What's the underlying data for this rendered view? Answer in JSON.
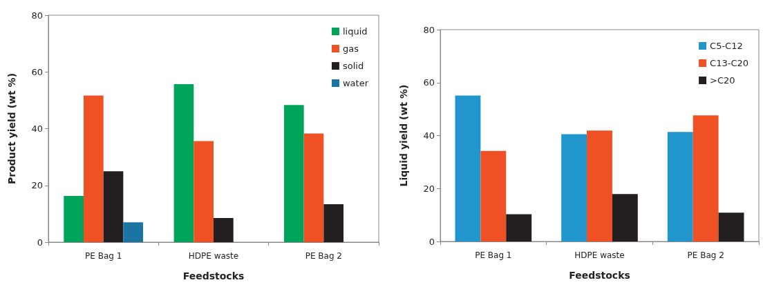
{
  "chart_data": [
    {
      "type": "bar",
      "xlabel": "Feedstocks",
      "ylabel": "Product yield (wt %)",
      "categories": [
        "PE Bag 1",
        "HDPE waste",
        "PE Bag 2"
      ],
      "ylim": [
        0,
        80
      ],
      "yticks": [
        0,
        20,
        40,
        60,
        80
      ],
      "grid": false,
      "legend": "top right",
      "series": [
        {
          "name": "liquid",
          "color": "#00a35a",
          "values": [
            16.3,
            55.7,
            48.3
          ]
        },
        {
          "name": "gas",
          "color": "#ef5125",
          "values": [
            51.7,
            35.6,
            38.3
          ]
        },
        {
          "name": "solid",
          "color": "#231f20",
          "values": [
            25.0,
            8.5,
            13.4
          ]
        },
        {
          "name": "water",
          "color": "#1b75a3",
          "values": [
            7.0,
            null,
            null
          ]
        }
      ]
    },
    {
      "type": "bar",
      "xlabel": "Feedstocks",
      "ylabel": "Liquid yield (wt %)",
      "categories": [
        "PE Bag 1",
        "HDPE waste",
        "PE Bag 2"
      ],
      "ylim": [
        0,
        80
      ],
      "yticks": [
        0,
        20,
        40,
        60,
        80
      ],
      "grid": false,
      "legend": "top right",
      "series": [
        {
          "name": "C5-C12",
          "color": "#2196cc",
          "values": [
            55.1,
            40.5,
            41.4
          ]
        },
        {
          "name": "C13-C20",
          "color": "#ef5125",
          "values": [
            34.2,
            41.9,
            47.6
          ]
        },
        {
          "name": ">C20",
          "color": "#231f20",
          "values": [
            10.3,
            17.9,
            10.9
          ]
        }
      ]
    }
  ]
}
